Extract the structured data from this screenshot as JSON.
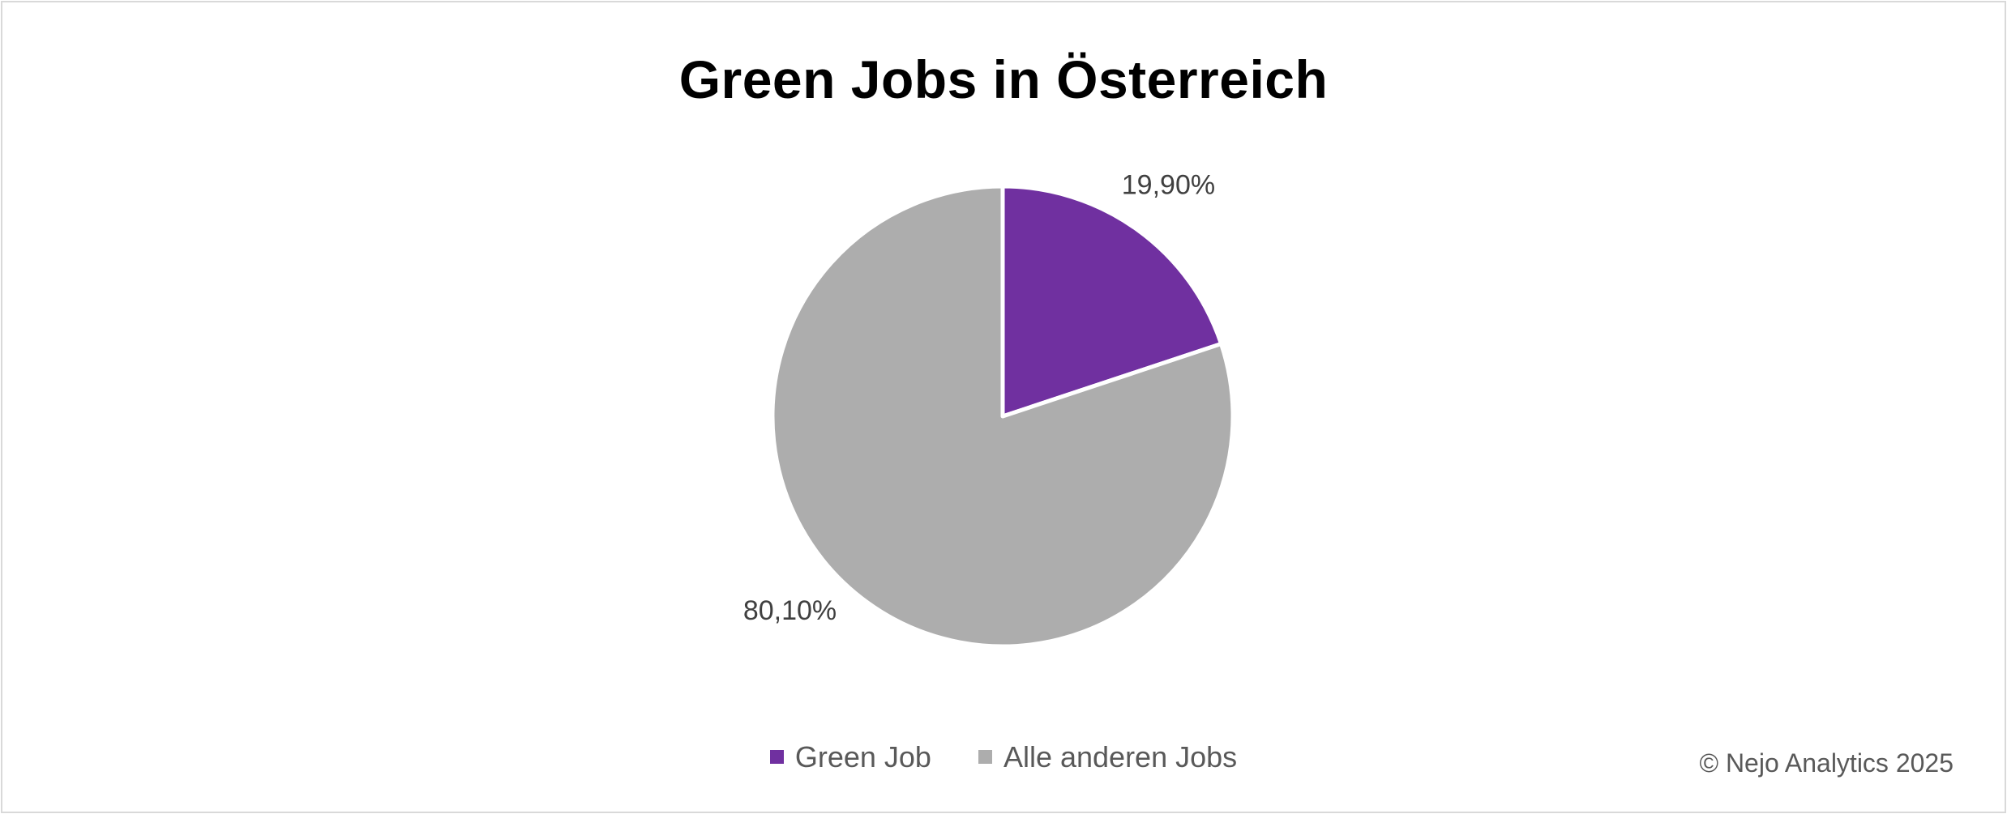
{
  "chart_data": {
    "type": "pie",
    "title": "Green Jobs in Österreich",
    "slices": [
      {
        "label": "Green Job",
        "value": 19.9,
        "display": "19,90%",
        "color": "#7030a0"
      },
      {
        "label": "Alle anderen Jobs",
        "value": 80.1,
        "display": "80,10%",
        "color": "#adadad"
      }
    ],
    "start_angle_deg": 0,
    "direction": "clockwise",
    "legend_position": "bottom"
  },
  "footer": {
    "copyright": "© Nejo Analytics 2025"
  },
  "colors": {
    "label_text": "#404040",
    "legend_text": "#595959",
    "slice_border": "#ffffff"
  }
}
